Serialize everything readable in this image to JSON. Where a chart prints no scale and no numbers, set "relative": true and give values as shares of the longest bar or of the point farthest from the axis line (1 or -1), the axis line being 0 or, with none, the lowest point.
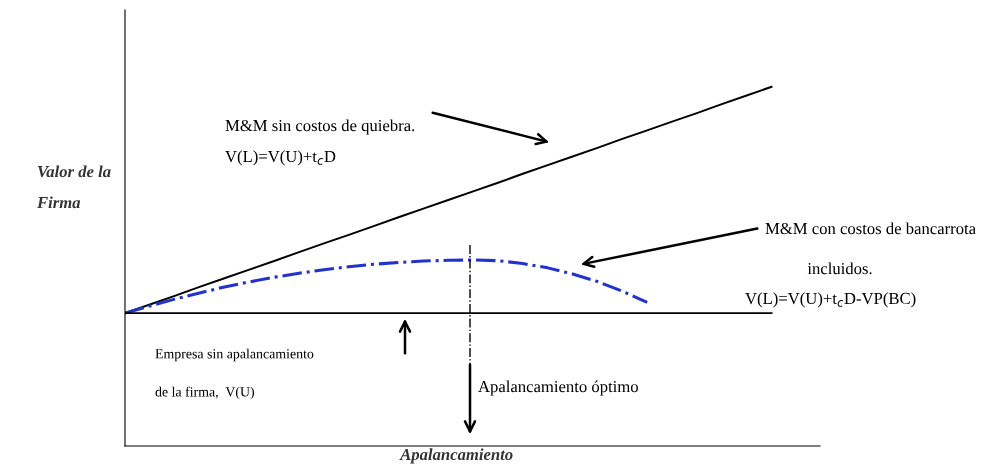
{
  "chart_data": {
    "type": "line",
    "relative": true,
    "xlabel": "Apalancamiento",
    "ylabel": "Valor de la Firma",
    "categories": [
      null,
      null,
      null,
      null,
      null,
      null,
      null,
      null,
      null,
      null,
      null,
      null,
      null,
      null,
      null,
      null,
      null,
      null,
      null,
      null,
      null,
      null,
      null,
      null,
      null,
      null,
      null
    ],
    "series": [
      {
        "color": "#000000",
        "line_style": "solid",
        "values": [
          0.37,
          0.394,
          0.418,
          0.443,
          0.467,
          0.491,
          0.515,
          0.54,
          0.564,
          0.588,
          0.612,
          0.637,
          0.661,
          0.685,
          0.709,
          0.733,
          0.758,
          0.782,
          0.806,
          0.83,
          0.855,
          0.879,
          0.903,
          0.927,
          0.952,
          0.976,
          1.0
        ]
      },
      {
        "color": "#2233cc",
        "line_style": "dashdot",
        "values": [
          0.37,
          0.39,
          0.409,
          0.426,
          0.443,
          0.457,
          0.47,
          0.481,
          0.491,
          0.499,
          0.506,
          0.511,
          0.515,
          0.517,
          0.518,
          0.516,
          0.508,
          0.496,
          0.479,
          0.458,
          0.431,
          0.4,
          null,
          null,
          null,
          null,
          null
        ]
      },
      {
        "color": "#000000",
        "line_style": "solid",
        "values": [
          0.37,
          0.37,
          0.37,
          0.37,
          0.37,
          0.37,
          0.37,
          0.37,
          0.37,
          0.37,
          0.37,
          0.37,
          0.37,
          0.37,
          0.37,
          0.37,
          0.37,
          0.37,
          0.37,
          0.37,
          0.37,
          0.37,
          0.37,
          0.37,
          0.37,
          0.37,
          0.37
        ]
      }
    ],
    "annotations": [
      "M&M sin costos de quiebra.",
      "V(L)=V(U)+t$_{c}$D",
      "M&M con costos de bancarrota",
      "incluidos.",
      "V(L)=V(U)+t$_{c}$D-VP(BC)",
      "Empresa sin apalancamiento",
      "de la firma,  V(U)",
      "Apalancamiento óptimo"
    ],
    "legend": false
  }
}
